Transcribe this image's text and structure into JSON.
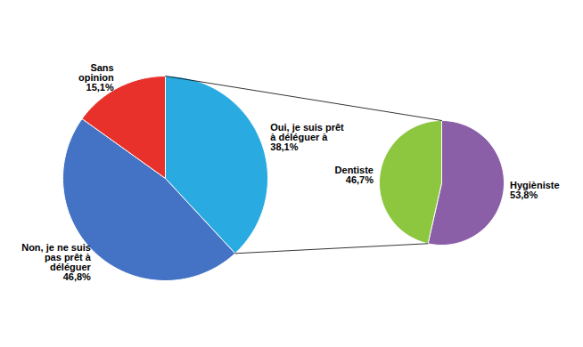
{
  "chart_data": [
    {
      "type": "pie",
      "categories": [
        "Oui, je suis prêt\nà déléguer à\n38,1%",
        "Non, je ne suis\npas prêt à\ndéléguer\n46,8%",
        "Sans\nopinion\n15,1%"
      ],
      "values": [
        38.1,
        46.8,
        15.1
      ],
      "colors": [
        "#29ABE2",
        "#4472C4",
        "#E8312A"
      ]
    },
    {
      "type": "pie",
      "categories": [
        "Hygièniste\n53,8%",
        "Dentiste\n46,7%"
      ],
      "values": [
        53.8,
        46.7
      ],
      "colors": [
        "#8B5EA8",
        "#8DC63F"
      ]
    }
  ]
}
